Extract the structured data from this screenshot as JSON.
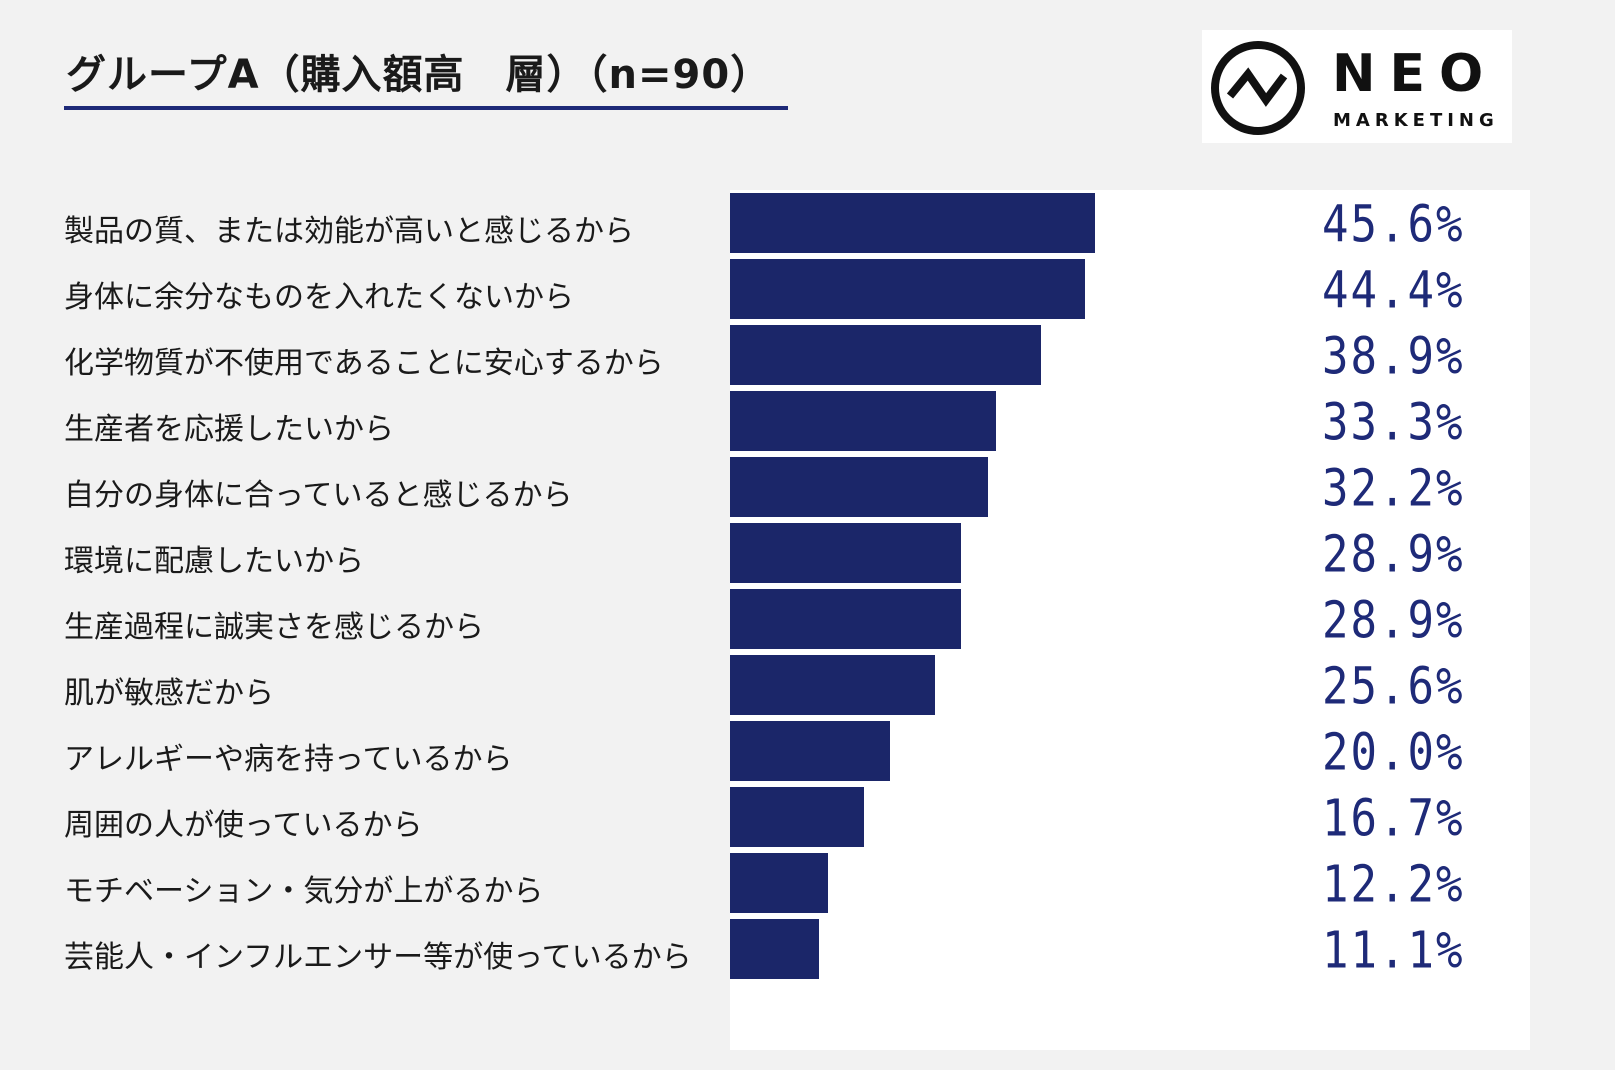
{
  "header": {
    "title": "グループA（購入額高　層）（n=90）"
  },
  "logo": {
    "brand": "NEO",
    "sub": "MARKETING"
  },
  "colors": {
    "bar": "#1b2669",
    "value_text": "#1e2a78",
    "underline": "#1e2a78",
    "background": "#f2f2f2"
  },
  "chart_data": {
    "type": "bar",
    "orientation": "horizontal",
    "title": "",
    "xlabel": "",
    "ylabel": "",
    "unit": "%",
    "xlim": [
      0,
      100
    ],
    "grid": false,
    "legend": "none",
    "categories": [
      "製品の質、または効能が高いと感じるから",
      "身体に余分なものを入れたくないから",
      "化学物質が不使用であることに安心するから",
      "生産者を応援したいから",
      "自分の身体に合っていると感じるから",
      "環境に配慮したいから",
      "生産過程に誠実さを感じるから",
      "肌が敏感だから",
      "アレルギーや病を持っているから",
      "周囲の人が使っているから",
      "モチベーション・気分が上がるから",
      "芸能人・インフルエンサー等が使っているから"
    ],
    "values": [
      45.6,
      44.4,
      38.9,
      33.3,
      32.2,
      28.9,
      28.9,
      25.6,
      20.0,
      16.7,
      12.2,
      11.1
    ],
    "value_labels": [
      "45.6%",
      "44.4%",
      "38.9%",
      "33.3%",
      "32.2%",
      "28.9%",
      "28.9%",
      "25.6%",
      "20.0%",
      "16.7%",
      "12.2%",
      "11.1%"
    ]
  }
}
